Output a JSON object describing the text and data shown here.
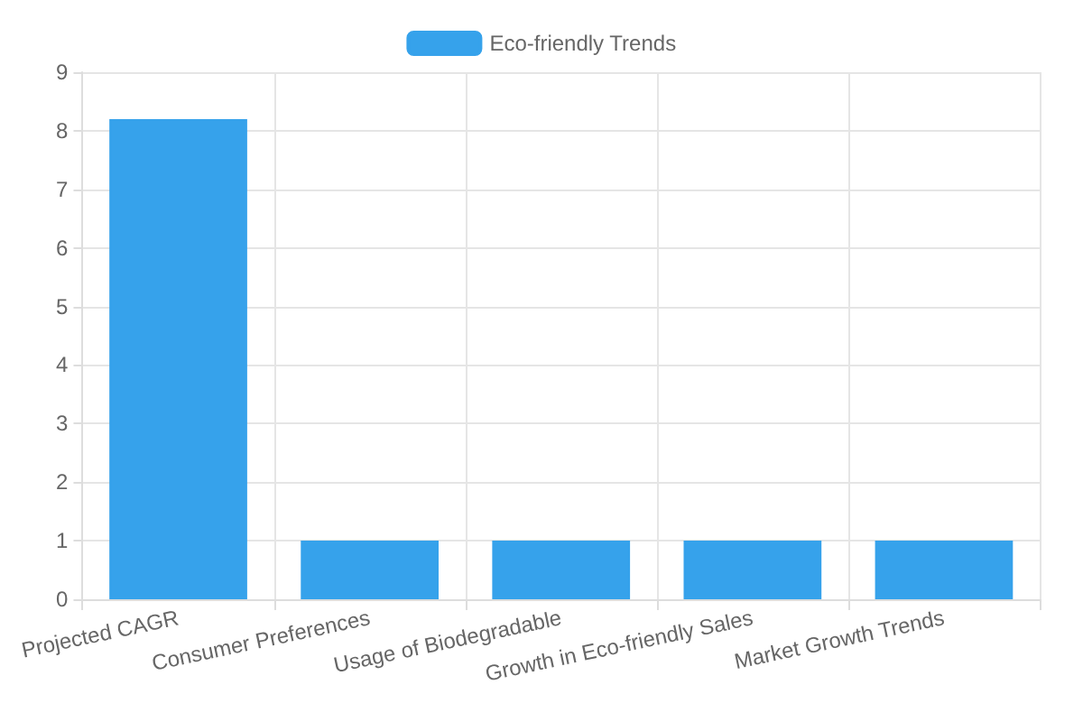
{
  "chart_data": {
    "type": "bar",
    "categories": [
      "Projected CAGR",
      "Consumer Preferences",
      "Usage of Biodegradable",
      "Growth in Eco-friendly Sales",
      "Market Growth Trends"
    ],
    "series": [
      {
        "name": "Eco-friendly Trends",
        "color": "#36a2eb",
        "values": [
          8.2,
          1,
          1,
          1,
          1
        ]
      }
    ],
    "ylim": [
      0,
      9
    ],
    "yticks": [
      0,
      1,
      2,
      3,
      4,
      5,
      6,
      7,
      8,
      9
    ],
    "grid": true,
    "legend": "top"
  }
}
